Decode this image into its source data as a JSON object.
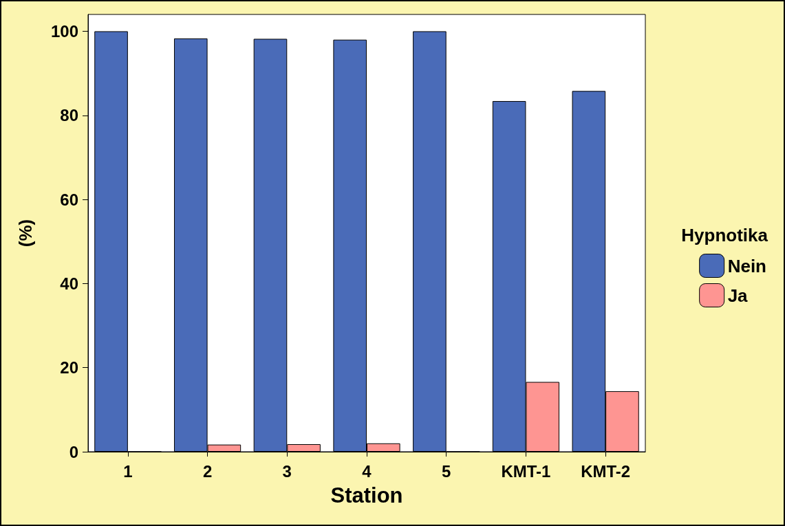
{
  "chart_data": {
    "type": "bar",
    "xlabel": "Station",
    "ylabel": "(%)",
    "legend_title": "Hypnotika",
    "categories": [
      "1",
      "2",
      "3",
      "4",
      "5",
      "KMT-1",
      "KMT-2"
    ],
    "series": [
      {
        "name": "Nein",
        "color": "#4a6bb8",
        "values": [
          100,
          98.3,
          98.2,
          98.0,
          100,
          83.4,
          85.8
        ]
      },
      {
        "name": "Ja",
        "color": "#fe9592",
        "values": [
          0,
          1.7,
          1.8,
          2.0,
          0,
          16.6,
          14.4
        ]
      }
    ],
    "ylim": [
      0,
      104
    ],
    "yticks": [
      0,
      20,
      40,
      60,
      80,
      100
    ],
    "grid": false,
    "legend": "right"
  }
}
